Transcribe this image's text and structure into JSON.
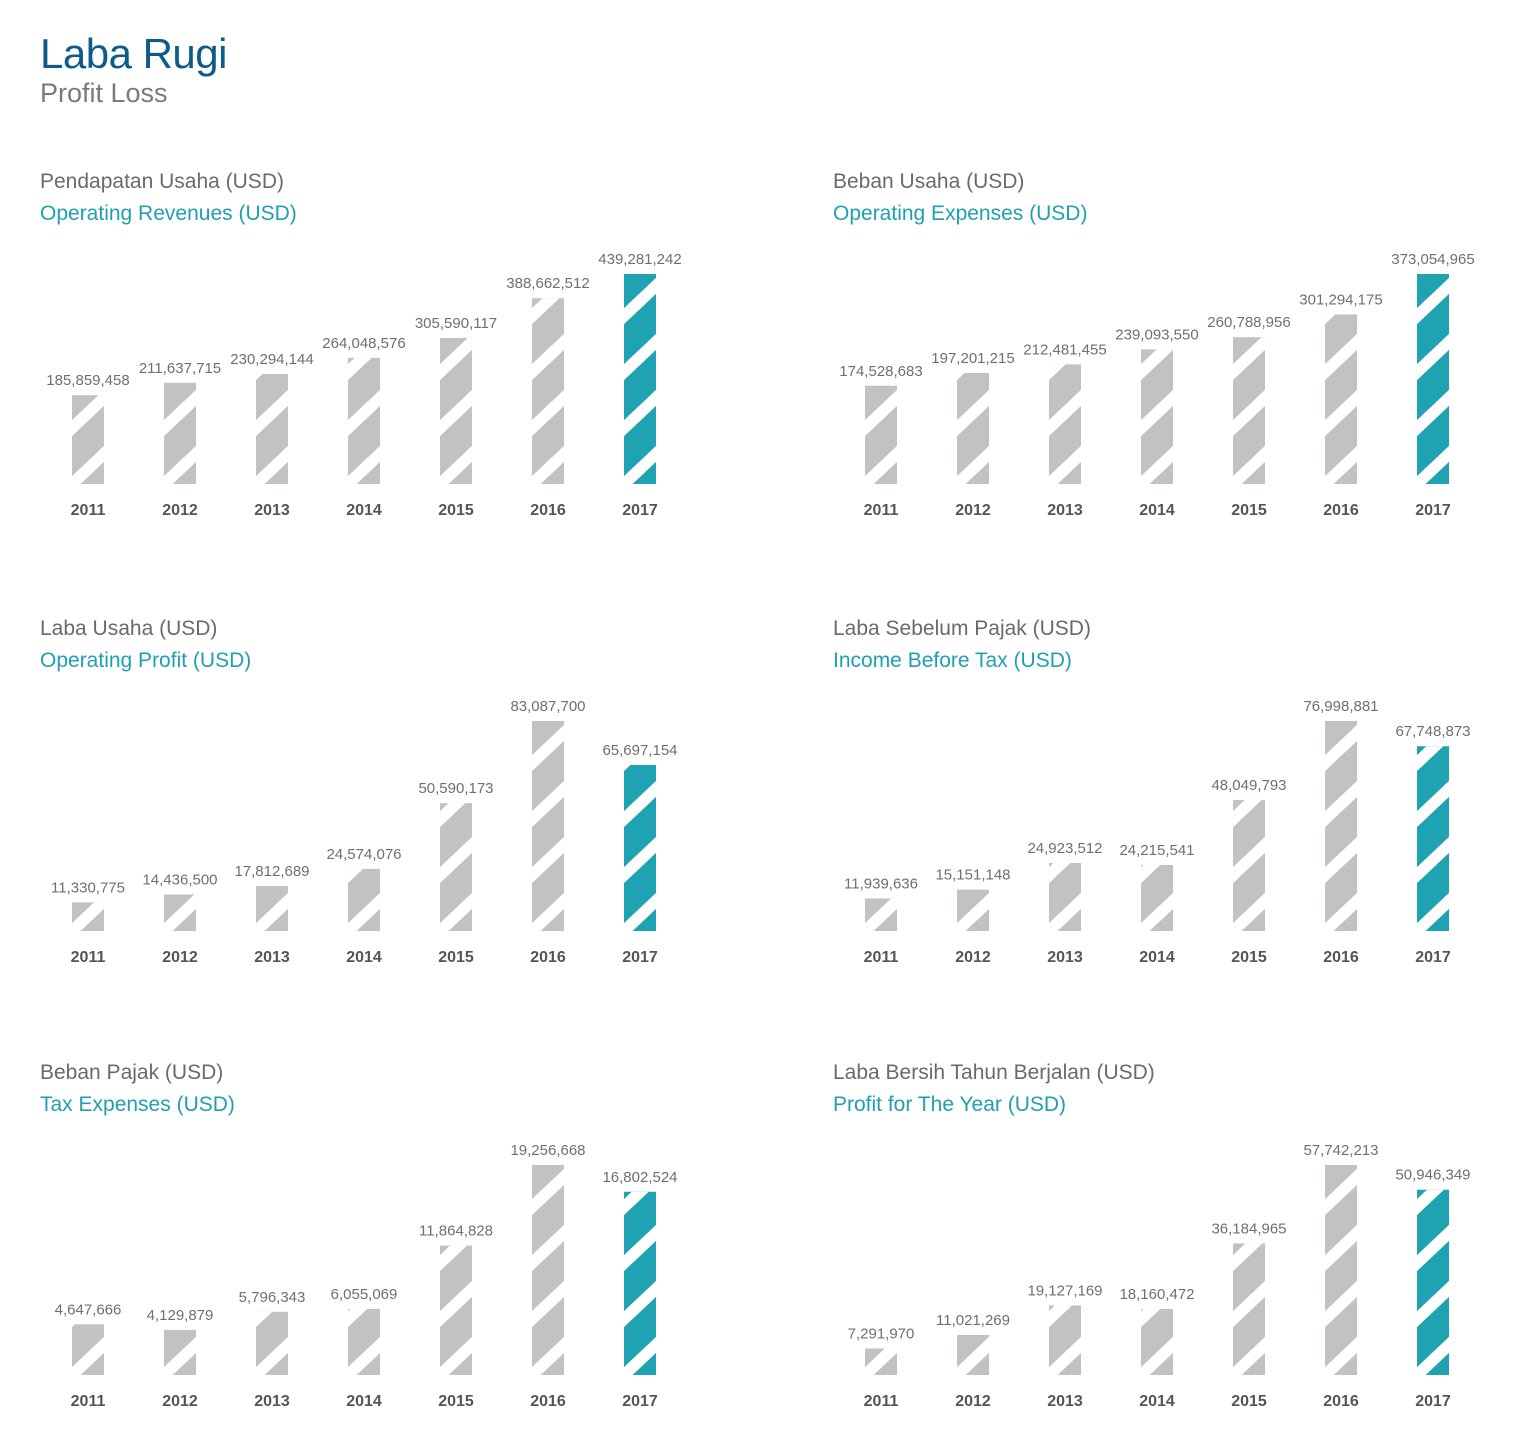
{
  "header": {
    "title": "Laba Rugi",
    "subtitle": "Profit Loss"
  },
  "colors": {
    "bar_default": "#c1c2c4",
    "bar_highlight": "#1fa2b1",
    "stripe": "#ffffff"
  },
  "charts": [
    {
      "title_id": "Pendapatan Usaha (USD)",
      "title_en": "Operating Revenues (USD)"
    },
    {
      "title_id": "Beban Usaha (USD)",
      "title_en": "Operating Expenses (USD)"
    },
    {
      "title_id": "Laba Usaha (USD)",
      "title_en": "Operating Profit (USD)"
    },
    {
      "title_id": "Laba Sebelum Pajak (USD)",
      "title_en": "Income Before Tax (USD)"
    },
    {
      "title_id": "Beban Pajak (USD)",
      "title_en": "Tax Expenses (USD)"
    },
    {
      "title_id": "Laba Bersih Tahun Berjalan (USD)",
      "title_en": "Profit for The Year (USD)"
    }
  ],
  "chart_data": [
    {
      "type": "bar",
      "title": "Pendapatan Usaha (USD)",
      "subtitle": "Operating Revenues (USD)",
      "categories": [
        "2011",
        "2012",
        "2013",
        "2014",
        "2015",
        "2016",
        "2017"
      ],
      "values": [
        185859458,
        211637715,
        230294144,
        264048576,
        305590117,
        388662512,
        439281242
      ],
      "value_labels": [
        "185,859,458",
        "211,637,715",
        "230,294,144",
        "264,048,576",
        "305,590,117",
        "388,662,512",
        "439,281,242"
      ],
      "highlight": "2017"
    },
    {
      "type": "bar",
      "title": "Beban Usaha (USD)",
      "subtitle": "Operating Expenses (USD)",
      "categories": [
        "2011",
        "2012",
        "2013",
        "2014",
        "2015",
        "2016",
        "2017"
      ],
      "values": [
        174528683,
        197201215,
        212481455,
        239093550,
        260788956,
        301294175,
        373054965
      ],
      "value_labels": [
        "174,528,683",
        "197,201,215",
        "212,481,455",
        "239,093,550",
        "260,788,956",
        "301,294,175",
        "373,054,965"
      ],
      "highlight": "2017"
    },
    {
      "type": "bar",
      "title": "Laba Usaha (USD)",
      "subtitle": "Operating Profit (USD)",
      "categories": [
        "2011",
        "2012",
        "2013",
        "2014",
        "2015",
        "2016",
        "2017"
      ],
      "values": [
        11330775,
        14436500,
        17812689,
        24574076,
        50590173,
        83087700,
        65697154
      ],
      "value_labels": [
        "11,330,775",
        "14,436,500",
        "17,812,689",
        "24,574,076",
        "50,590,173",
        "83,087,700",
        "65,697,154"
      ],
      "highlight": "2017"
    },
    {
      "type": "bar",
      "title": "Laba Sebelum Pajak (USD)",
      "subtitle": "Income Before Tax (USD)",
      "categories": [
        "2011",
        "2012",
        "2013",
        "2014",
        "2015",
        "2016",
        "2017"
      ],
      "values": [
        11939636,
        15151148,
        24923512,
        24215541,
        48049793,
        76998881,
        67748873
      ],
      "value_labels": [
        "11,939,636",
        "15,151,148",
        "24,923,512",
        "24,215,541",
        "48,049,793",
        "76,998,881",
        "67,748,873"
      ],
      "highlight": "2017"
    },
    {
      "type": "bar",
      "title": "Beban Pajak (USD)",
      "subtitle": "Tax Expenses (USD)",
      "categories": [
        "2011",
        "2012",
        "2013",
        "2014",
        "2015",
        "2016",
        "2017"
      ],
      "values": [
        4647666,
        4129879,
        5796343,
        6055069,
        11864828,
        19256668,
        16802524
      ],
      "value_labels": [
        "4,647,666",
        "4,129,879",
        "5,796,343",
        "6,055,069",
        "11,864,828",
        "19,256,668",
        "16,802,524"
      ],
      "highlight": "2017"
    },
    {
      "type": "bar",
      "title": "Laba Bersih Tahun Berjalan (USD)",
      "subtitle": "Profit for The Year (USD)",
      "categories": [
        "2011",
        "2012",
        "2013",
        "2014",
        "2015",
        "2016",
        "2017"
      ],
      "values": [
        7291970,
        11021269,
        19127169,
        18160472,
        36184965,
        57742213,
        50946349
      ],
      "value_labels": [
        "7,291,970",
        "11,021,269",
        "19,127,169",
        "18,160,472",
        "36,184,965",
        "57,742,213",
        "50,946,349"
      ],
      "highlight": "2017"
    }
  ]
}
